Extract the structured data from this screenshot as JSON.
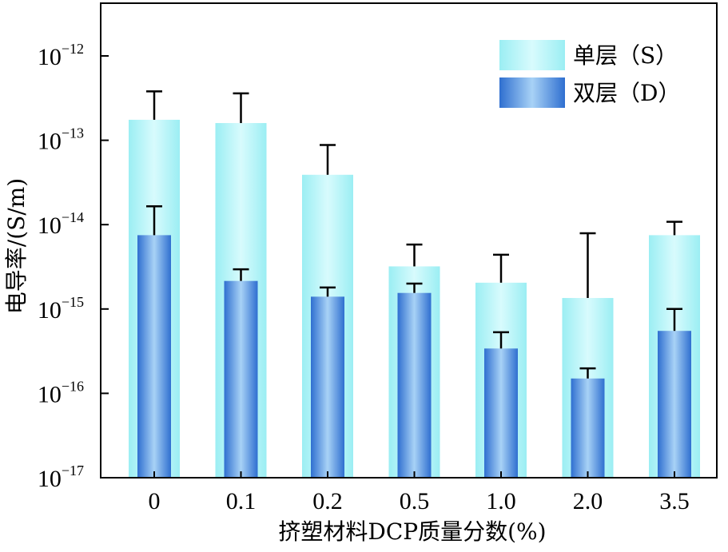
{
  "chart_data": {
    "type": "bar",
    "title": "",
    "xlabel": "挤塑材料DCP质量分数(%)",
    "ylabel": "电导率/(S/m)",
    "categories": [
      "0",
      "0.1",
      "0.2",
      "0.5",
      "1.0",
      "2.0",
      "3.5"
    ],
    "yscale": "log",
    "ylim": [
      1e-17,
      1e-12
    ],
    "yticks": [
      {
        "base": "10",
        "exp": "−12",
        "value": 1e-12
      },
      {
        "base": "10",
        "exp": "−13",
        "value": 1e-13
      },
      {
        "base": "10",
        "exp": "−14",
        "value": 1e-14
      },
      {
        "base": "10",
        "exp": "−15",
        "value": 1e-15
      },
      {
        "base": "10",
        "exp": "−16",
        "value": 1e-16
      },
      {
        "base": "10",
        "exp": "−17",
        "value": 1e-17
      }
    ],
    "series": [
      {
        "name": "单层（S）",
        "color": "#aef0f5",
        "values": [
          1.75e-13,
          1.6e-13,
          3.9e-14,
          3.2e-15,
          2.05e-15,
          1.35e-15,
          7.5e-15
        ],
        "error_upper": [
          3.8e-13,
          3.6e-13,
          8.8e-14,
          5.8e-15,
          4.4e-15,
          7.9e-15,
          1.08e-14
        ]
      },
      {
        "name": "双层（D）",
        "color": "#4a86d8",
        "values": [
          7.5e-15,
          2.15e-15,
          1.4e-15,
          1.55e-15,
          3.4e-16,
          1.5e-16,
          5.5e-16
        ],
        "error_upper": [
          1.65e-14,
          2.95e-15,
          1.8e-15,
          2e-15,
          5.3e-16,
          1.98e-16,
          1e-15
        ]
      }
    ],
    "legend": "top-right",
    "grid": false
  }
}
